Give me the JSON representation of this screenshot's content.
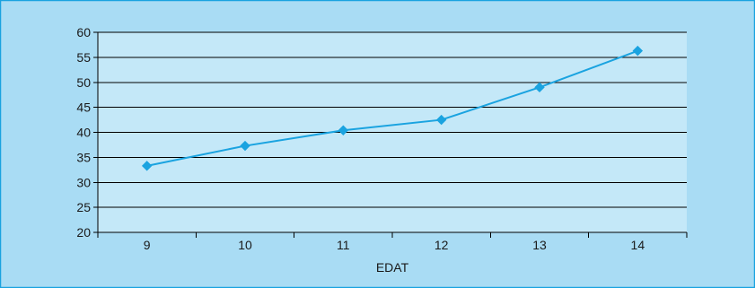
{
  "chart_data": {
    "type": "line",
    "title": "",
    "xlabel": "EDAT",
    "ylabel": "",
    "categories": [
      "9",
      "10",
      "11",
      "12",
      "13",
      "14"
    ],
    "ylim": [
      20,
      60
    ],
    "yticks": [
      20,
      25,
      30,
      35,
      40,
      45,
      50,
      55,
      60
    ],
    "grid": "horizontal",
    "legend": "none",
    "series": [
      {
        "values": [
          33.3,
          37.3,
          40.4,
          42.5,
          49.0,
          56.3
        ]
      }
    ],
    "colors": {
      "outer_background": "#a9dcf4",
      "plot_background": "#c4e8f8",
      "frame": "#1aa3e0",
      "gridline": "#000000",
      "axis": "#000000",
      "series": "#1aa3e0"
    }
  }
}
